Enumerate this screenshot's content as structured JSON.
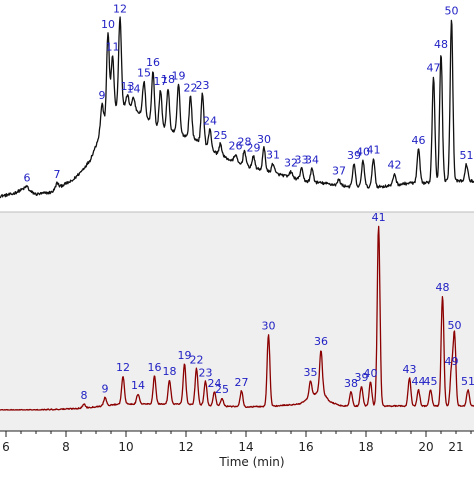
{
  "chart_data": {
    "type": "line",
    "xlabel": "Time (min)",
    "xlim": [
      5.8,
      21.6
    ],
    "xticks": [
      6,
      8,
      10,
      12,
      14,
      16,
      18,
      20,
      21
    ],
    "panels": [
      {
        "name": "",
        "color": "#111111",
        "background": "#ffffff",
        "ylim": [
          0,
          100
        ],
        "baseline": [
          [
            5.8,
            1
          ],
          [
            6.2,
            2
          ],
          [
            6.6,
            5
          ],
          [
            7.0,
            2
          ],
          [
            7.5,
            3
          ],
          [
            7.9,
            7
          ],
          [
            8.2,
            9
          ],
          [
            8.5,
            14
          ],
          [
            8.8,
            20
          ],
          [
            9.0,
            28
          ],
          [
            9.2,
            38
          ],
          [
            9.5,
            45
          ],
          [
            9.8,
            50
          ],
          [
            10.2,
            48
          ],
          [
            10.6,
            44
          ],
          [
            11.0,
            38
          ],
          [
            11.5,
            36
          ],
          [
            12.0,
            33
          ],
          [
            12.5,
            30
          ],
          [
            13.0,
            24
          ],
          [
            13.5,
            20
          ],
          [
            14.0,
            17
          ],
          [
            14.5,
            15
          ],
          [
            15.0,
            13
          ],
          [
            15.5,
            11
          ],
          [
            16.0,
            9
          ],
          [
            16.5,
            8
          ],
          [
            17.0,
            7
          ],
          [
            17.5,
            6
          ],
          [
            18.0,
            6
          ],
          [
            18.5,
            6
          ],
          [
            19.0,
            7
          ],
          [
            19.5,
            8
          ],
          [
            20.0,
            8
          ],
          [
            20.5,
            9
          ],
          [
            21.0,
            9
          ],
          [
            21.6,
            9
          ]
        ],
        "peaks": [
          {
            "label": "6",
            "x": 6.7,
            "y": 2
          },
          {
            "label": "7",
            "x": 7.7,
            "y": 3
          },
          {
            "label": "9",
            "x": 9.2,
            "y": 12
          },
          {
            "label": "10",
            "x": 9.4,
            "y": 45
          },
          {
            "label": "11",
            "x": 9.55,
            "y": 30
          },
          {
            "label": "12",
            "x": 9.8,
            "y": 46
          },
          {
            "label": "13",
            "x": 10.05,
            "y": 6
          },
          {
            "label": "14",
            "x": 10.25,
            "y": 6
          },
          {
            "label": "15",
            "x": 10.6,
            "y": 18
          },
          {
            "label": "16",
            "x": 10.9,
            "y": 28
          },
          {
            "label": "17",
            "x": 11.15,
            "y": 20
          },
          {
            "label": "18",
            "x": 11.4,
            "y": 22
          },
          {
            "label": "19",
            "x": 11.75,
            "y": 26
          },
          {
            "label": "22",
            "x": 12.15,
            "y": 22
          },
          {
            "label": "23",
            "x": 12.55,
            "y": 26
          },
          {
            "label": "24",
            "x": 12.8,
            "y": 10
          },
          {
            "label": "25",
            "x": 13.15,
            "y": 6
          },
          {
            "label": "26",
            "x": 13.65,
            "y": 4
          },
          {
            "label": "28",
            "x": 13.95,
            "y": 8
          },
          {
            "label": "29",
            "x": 14.25,
            "y": 6
          },
          {
            "label": "30",
            "x": 14.6,
            "y": 12
          },
          {
            "label": "31",
            "x": 14.9,
            "y": 5
          },
          {
            "label": "32",
            "x": 15.5,
            "y": 3
          },
          {
            "label": "33",
            "x": 15.85,
            "y": 6
          },
          {
            "label": "34",
            "x": 16.2,
            "y": 7
          },
          {
            "label": "37",
            "x": 17.1,
            "y": 3
          },
          {
            "label": "39",
            "x": 17.6,
            "y": 12
          },
          {
            "label": "40",
            "x": 17.9,
            "y": 14
          },
          {
            "label": "41",
            "x": 18.25,
            "y": 15
          },
          {
            "label": "42",
            "x": 18.95,
            "y": 6
          },
          {
            "label": "46",
            "x": 19.75,
            "y": 18
          },
          {
            "label": "47",
            "x": 20.25,
            "y": 56
          },
          {
            "label": "48",
            "x": 20.5,
            "y": 68
          },
          {
            "label": "50",
            "x": 20.85,
            "y": 86
          },
          {
            "label": "51",
            "x": 21.35,
            "y": 9
          }
        ]
      },
      {
        "name": "",
        "color": "#8b0000",
        "background": "#efefef",
        "ylim": [
          0,
          100
        ],
        "baseline": [
          [
            5.8,
            0
          ],
          [
            7.0,
            0
          ],
          [
            8.0,
            0.5
          ],
          [
            8.6,
            1
          ],
          [
            9.2,
            2
          ],
          [
            9.8,
            3
          ],
          [
            10.5,
            3
          ],
          [
            11.0,
            3
          ],
          [
            12.0,
            3
          ],
          [
            13.0,
            2
          ],
          [
            14.0,
            1.5
          ],
          [
            15.0,
            2
          ],
          [
            15.8,
            3
          ],
          [
            16.2,
            7
          ],
          [
            16.5,
            10
          ],
          [
            16.8,
            4
          ],
          [
            17.2,
            2
          ],
          [
            18.0,
            2
          ],
          [
            19.0,
            2
          ],
          [
            20.0,
            2
          ],
          [
            21.0,
            2
          ],
          [
            21.6,
            2
          ]
        ],
        "peaks": [
          {
            "label": "8",
            "x": 8.6,
            "y": 2
          },
          {
            "label": "9",
            "x": 9.3,
            "y": 4
          },
          {
            "label": "12",
            "x": 9.9,
            "y": 14
          },
          {
            "label": "14",
            "x": 10.4,
            "y": 5
          },
          {
            "label": "16",
            "x": 10.95,
            "y": 14
          },
          {
            "label": "18",
            "x": 11.45,
            "y": 12
          },
          {
            "label": "19",
            "x": 11.95,
            "y": 20
          },
          {
            "label": "22",
            "x": 12.35,
            "y": 18
          },
          {
            "label": "23",
            "x": 12.65,
            "y": 12
          },
          {
            "label": "24",
            "x": 12.95,
            "y": 7
          },
          {
            "label": "25",
            "x": 13.2,
            "y": 4
          },
          {
            "label": "27",
            "x": 13.85,
            "y": 8
          },
          {
            "label": "30",
            "x": 14.75,
            "y": 36
          },
          {
            "label": "35",
            "x": 16.15,
            "y": 8
          },
          {
            "label": "36",
            "x": 16.5,
            "y": 20
          },
          {
            "label": "38",
            "x": 17.5,
            "y": 7
          },
          {
            "label": "39",
            "x": 17.85,
            "y": 10
          },
          {
            "label": "40",
            "x": 18.15,
            "y": 12
          },
          {
            "label": "41",
            "x": 18.42,
            "y": 90
          },
          {
            "label": "43",
            "x": 19.45,
            "y": 14
          },
          {
            "label": "44",
            "x": 19.75,
            "y": 8
          },
          {
            "label": "45",
            "x": 20.15,
            "y": 8
          },
          {
            "label": "48",
            "x": 20.55,
            "y": 55
          },
          {
            "label": "49",
            "x": 20.85,
            "y": 18
          },
          {
            "label": "50",
            "x": 20.95,
            "y": 36
          },
          {
            "label": "51",
            "x": 21.4,
            "y": 8
          }
        ]
      }
    ]
  }
}
